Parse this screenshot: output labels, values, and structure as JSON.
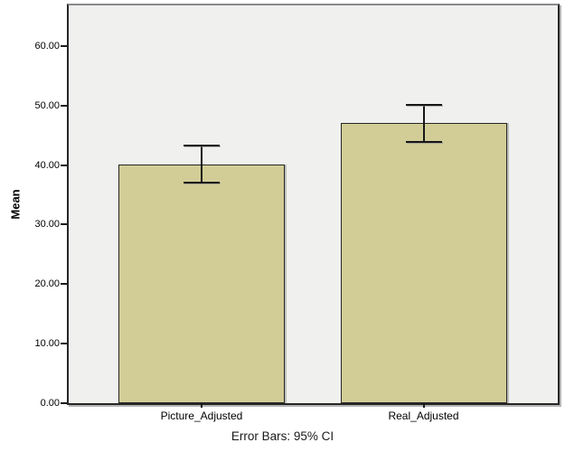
{
  "chart_data": {
    "type": "bar",
    "title": "",
    "categories": [
      "Picture_Adjusted",
      "Real_Adjusted"
    ],
    "values": [
      40.1,
      47.1
    ],
    "error_bars": {
      "kind": "95% CI",
      "lower": [
        37.0,
        43.9
      ],
      "upper": [
        43.3,
        50.1
      ]
    },
    "ylabel": "Mean",
    "xlabel": "",
    "yticks": [
      0,
      10,
      20,
      30,
      40,
      50,
      60
    ],
    "ytick_labels": [
      "0.00",
      "10.00",
      "20.00",
      "30.00",
      "40.00",
      "50.00",
      "60.00"
    ],
    "ylim": [
      0,
      66.8
    ],
    "grid": false,
    "legend": "none",
    "caption": "Error Bars: 95% CI",
    "colors": {
      "bar_fill": "#D2CD96",
      "bar_border": "#262626",
      "plot_background": "#F0F0EE",
      "page_background": "#FFFFFF"
    }
  }
}
